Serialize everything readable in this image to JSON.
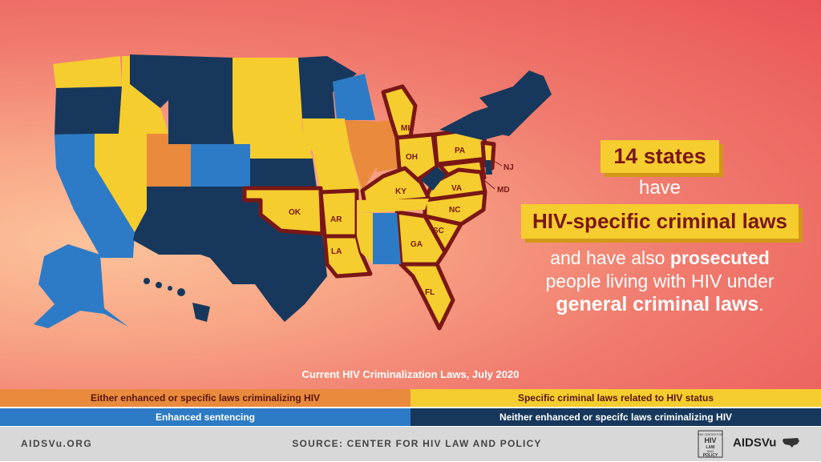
{
  "callout": {
    "count_label": "14 states",
    "have": "have",
    "law_type": "HIV-specific criminal laws",
    "line1_pre": "and have also ",
    "line1_bold": "prosecuted",
    "line2": "people living with HIV under",
    "line3_bold": "general criminal laws",
    "line3_end": "."
  },
  "map_labels": [
    "MI",
    "OH",
    "PA",
    "NJ",
    "MD",
    "KY",
    "VA",
    "NC",
    "SC",
    "GA",
    "FL",
    "AR",
    "OK",
    "LA"
  ],
  "legend": {
    "title": "Current HIV Criminalization Laws, July 2020",
    "items": [
      {
        "label": "Either enhanced or specific laws criminalizing HIV",
        "color": "#e98a3c"
      },
      {
        "label": "Specific criminal laws related to HIV status",
        "color": "#f5cd2e"
      },
      {
        "label": "Enhanced sentencing",
        "color": "#2d7bc6"
      },
      {
        "label": "Neither enhanced or specifc laws criminalizing HIV",
        "color": "#17385c"
      }
    ]
  },
  "footer": {
    "site": "AIDSVu.ORG",
    "source": "SOURCE: CENTER FOR HIV LAW AND POLICY",
    "logo_chlp": "THE CENTER FOR HIV LAW AND POLICY",
    "logo_aidsvu": "AIDSVu"
  },
  "colors": {
    "orange": "#e98a3c",
    "yellow": "#f5cd2e",
    "blue": "#2d7bc6",
    "navy": "#17385c",
    "highlight": "#7a1716"
  }
}
